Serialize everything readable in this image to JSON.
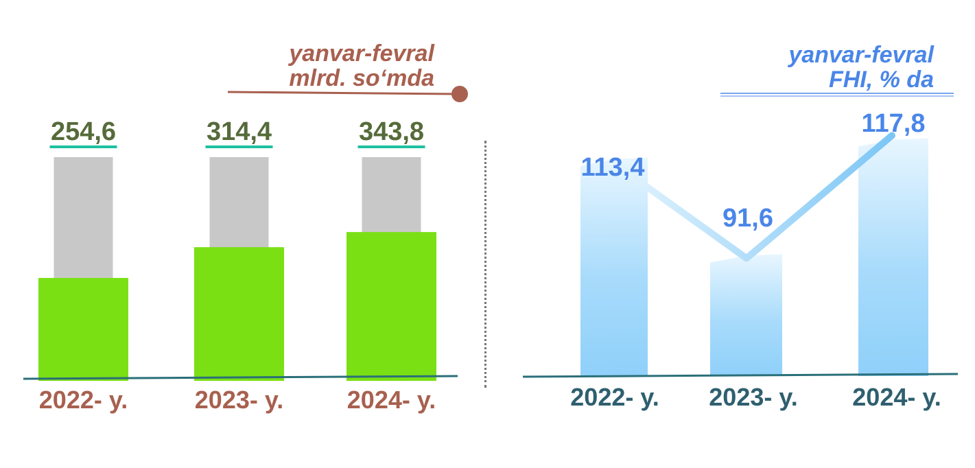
{
  "colors": {
    "left_bar": "#7ae014",
    "left_bar_bg": "#c8c8c8",
    "left_value": "#556b3a",
    "left_value_underline": "#1fc0a0",
    "left_title": "#a8604f",
    "left_axis_label": "#a8604f",
    "axis_line": "#2a6f79",
    "right_bar": "#8fd0fa",
    "right_value": "#4a86e8",
    "right_title": "#4a86e8",
    "right_axis_label": "#2f5f6f",
    "right_line": "#7cc6f5"
  },
  "chart_data": [
    {
      "type": "bar",
      "title_lines": [
        "yanvar-fevral",
        "mlrd. so‘mda"
      ],
      "categories": [
        "2022- y.",
        "2023- y.",
        "2024- y."
      ],
      "values": [
        254.6,
        314.4,
        343.8
      ],
      "value_labels": [
        "254,6",
        "314,4",
        "343,8"
      ]
    },
    {
      "type": "bar",
      "title_lines": [
        "yanvar-fevral",
        "FHI, % da"
      ],
      "categories": [
        "2022- y.",
        "2023- y.",
        "2024- y."
      ],
      "values": [
        113.4,
        91.6,
        117.8
      ],
      "value_labels": [
        "113,4",
        "91,6",
        "117,8"
      ]
    }
  ]
}
